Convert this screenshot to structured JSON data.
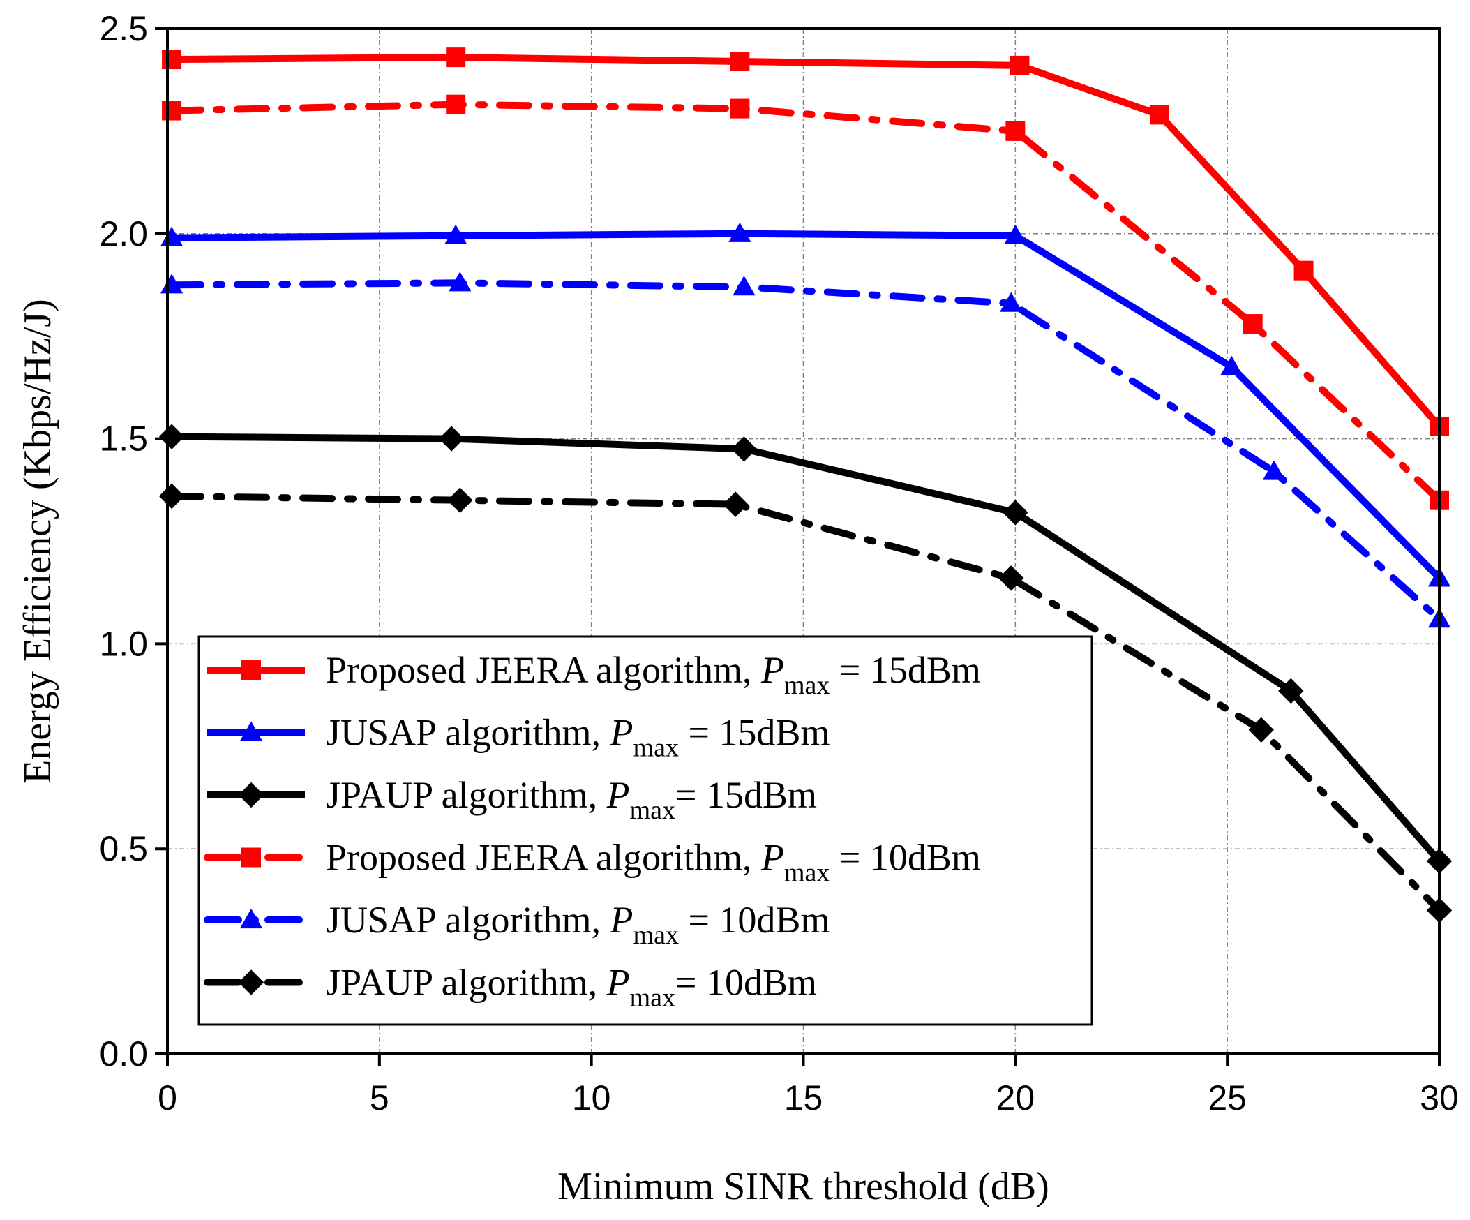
{
  "chart_data": {
    "type": "line",
    "title": "",
    "xlabel": "Minimum SINR threshold (dB)",
    "ylabel": "Energy Efficiency (Kbps/Hz/J)",
    "xlim": [
      0,
      30
    ],
    "ylim": [
      0,
      2.5
    ],
    "x_ticks": [
      "0",
      "5",
      "10",
      "15",
      "20",
      "25",
      "30"
    ],
    "y_ticks": [
      "0.0",
      "0.5",
      "1.0",
      "1.5",
      "2.0",
      "2.5"
    ],
    "x_tick_values": [
      0,
      5,
      10,
      15,
      20,
      25,
      30
    ],
    "y_tick_values": [
      0,
      0.5,
      1.0,
      1.5,
      2.0,
      2.5
    ],
    "grid": true,
    "legend_position": "bottom-left",
    "series": [
      {
        "id": "jeera15",
        "legend_prefix": "Proposed JEERA algorithm, ",
        "legend_p": "P",
        "legend_sub": "max",
        "legend_suffix": " = 15dBm",
        "color": "#ff0000",
        "dash": "solid",
        "marker": "square",
        "points": [
          [
            0.1,
            2.425
          ],
          [
            6.8,
            2.43
          ],
          [
            13.5,
            2.42
          ],
          [
            20.1,
            2.41
          ],
          [
            23.4,
            2.29
          ],
          [
            26.8,
            1.91
          ],
          [
            30,
            1.53
          ]
        ]
      },
      {
        "id": "jusap15",
        "legend_prefix": "JUSAP algorithm, ",
        "legend_p": "P",
        "legend_sub": "max",
        "legend_suffix": " = 15dBm",
        "color": "#0000ff",
        "dash": "solid",
        "marker": "triangle",
        "points": [
          [
            0.1,
            1.99
          ],
          [
            6.8,
            1.995
          ],
          [
            13.5,
            2.0
          ],
          [
            20.0,
            1.995
          ],
          [
            25.1,
            1.675
          ],
          [
            30,
            1.16
          ]
        ]
      },
      {
        "id": "jpaup15",
        "legend_prefix": "JPAUP  algorithm, ",
        "legend_p": "P",
        "legend_sub": "max",
        "legend_suffix": "= 15dBm",
        "color": "#000000",
        "dash": "solid",
        "marker": "diamond",
        "points": [
          [
            0.1,
            1.505
          ],
          [
            6.7,
            1.5
          ],
          [
            13.6,
            1.475
          ],
          [
            20.0,
            1.32
          ],
          [
            26.5,
            0.885
          ],
          [
            30,
            0.47
          ]
        ]
      },
      {
        "id": "jeera10",
        "legend_prefix": "Proposed JEERA algorithm, ",
        "legend_p": "P",
        "legend_sub": "max",
        "legend_suffix": " = 10dBm",
        "color": "#ff0000",
        "dash": "dashdot",
        "marker": "square",
        "points": [
          [
            0.1,
            2.3
          ],
          [
            6.8,
            2.315
          ],
          [
            13.5,
            2.305
          ],
          [
            20.0,
            2.25
          ],
          [
            25.6,
            1.78
          ],
          [
            30,
            1.35
          ]
        ]
      },
      {
        "id": "jusap10",
        "legend_prefix": "JUSAP algorithm, ",
        "legend_p": "P",
        "legend_sub": "max",
        "legend_suffix": " = 10dBm",
        "color": "#0000ff",
        "dash": "dashdot",
        "marker": "triangle",
        "points": [
          [
            0.1,
            1.875
          ],
          [
            6.9,
            1.88
          ],
          [
            13.6,
            1.87
          ],
          [
            19.9,
            1.83
          ],
          [
            26.1,
            1.42
          ],
          [
            30,
            1.06
          ]
        ]
      },
      {
        "id": "jpaup10",
        "legend_prefix": "JPAUP  algorithm, ",
        "legend_p": "P",
        "legend_sub": "max",
        "legend_suffix": "=  10dBm",
        "color": "#000000",
        "dash": "dashdot",
        "marker": "diamond",
        "points": [
          [
            0.1,
            1.36
          ],
          [
            6.9,
            1.35
          ],
          [
            13.4,
            1.34
          ],
          [
            19.9,
            1.16
          ],
          [
            25.8,
            0.79
          ],
          [
            30,
            0.35
          ]
        ]
      }
    ]
  }
}
